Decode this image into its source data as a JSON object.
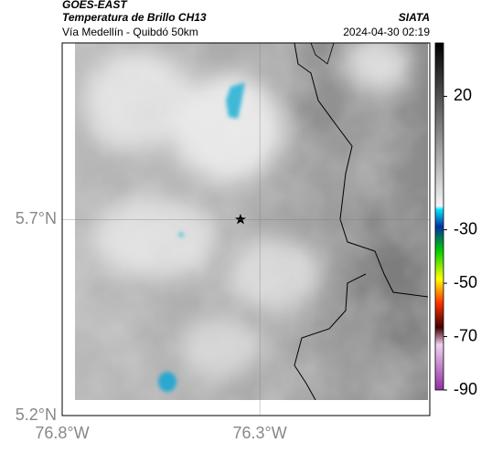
{
  "header": {
    "source": "GOES-EAST",
    "title": "Temperatura de Brillo CH13",
    "subtitle": "Vía Medellín - Quibdó 50km",
    "org": "SIATA",
    "datetime": "2024-04-30 02:19"
  },
  "map": {
    "xlim": [
      -76.8,
      -75.87
    ],
    "ylim": [
      5.2,
      6.15
    ],
    "xticks": [
      {
        "value": -76.8,
        "label": "76.8°W"
      },
      {
        "value": -76.3,
        "label": "76.3°W"
      }
    ],
    "yticks": [
      {
        "value": 5.7,
        "label": "5.7°N"
      },
      {
        "value": 5.2,
        "label": "5.2°N"
      }
    ]
  },
  "colorbar": {
    "lim": [
      40,
      -90
    ],
    "ticks": [
      20,
      -30,
      -50,
      -70,
      -90
    ]
  }
}
